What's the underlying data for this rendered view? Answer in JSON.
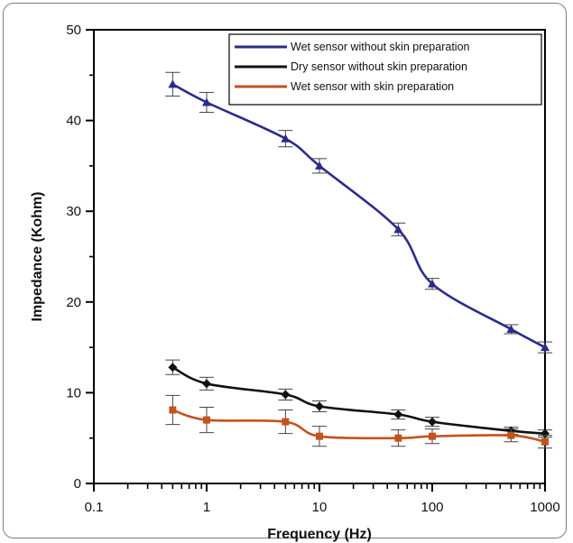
{
  "chart_data": {
    "type": "line",
    "xlabel": "Frequency (Hz)",
    "ylabel": "Impedance (Kohm)",
    "x_scale": "log",
    "xlim": [
      0.1,
      1000
    ],
    "ylim": [
      0,
      50
    ],
    "x_ticks": [
      0.1,
      1,
      10,
      100,
      1000
    ],
    "x_tick_labels": [
      "0.1",
      "1",
      "10",
      "100",
      "1000"
    ],
    "y_ticks": [
      0,
      10,
      20,
      30,
      40,
      50
    ],
    "y_tick_labels": [
      "0",
      "10",
      "20",
      "30",
      "40",
      "50"
    ],
    "grid": false,
    "legend_position": "top-right",
    "series": [
      {
        "name": "Wet sensor without skin preparation",
        "color": "#2b2b8c",
        "marker": "triangle",
        "x": [
          0.5,
          1,
          5,
          10,
          50,
          100,
          500,
          1000
        ],
        "y": [
          44.0,
          42.0,
          38.0,
          35.0,
          28.0,
          22.0,
          17.0,
          15.0
        ],
        "err": [
          1.3,
          1.1,
          0.9,
          0.8,
          0.7,
          0.6,
          0.5,
          0.6
        ]
      },
      {
        "name": "Dry sensor without skin preparation",
        "color": "#111111",
        "marker": "diamond",
        "x": [
          0.5,
          1,
          5,
          10,
          50,
          100,
          500,
          1000
        ],
        "y": [
          12.8,
          11.0,
          9.8,
          8.5,
          7.6,
          6.8,
          5.8,
          5.5
        ],
        "err": [
          0.8,
          0.7,
          0.6,
          0.6,
          0.5,
          0.5,
          0.4,
          0.4
        ]
      },
      {
        "name": "Wet sensor with skin preparation",
        "color": "#c4521e",
        "marker": "square",
        "x": [
          0.5,
          1,
          5,
          10,
          50,
          100,
          500,
          1000
        ],
        "y": [
          8.1,
          7.0,
          6.8,
          5.2,
          5.0,
          5.2,
          5.3,
          4.6
        ],
        "err": [
          1.6,
          1.4,
          1.3,
          1.1,
          0.9,
          0.8,
          0.7,
          0.7
        ]
      }
    ]
  }
}
